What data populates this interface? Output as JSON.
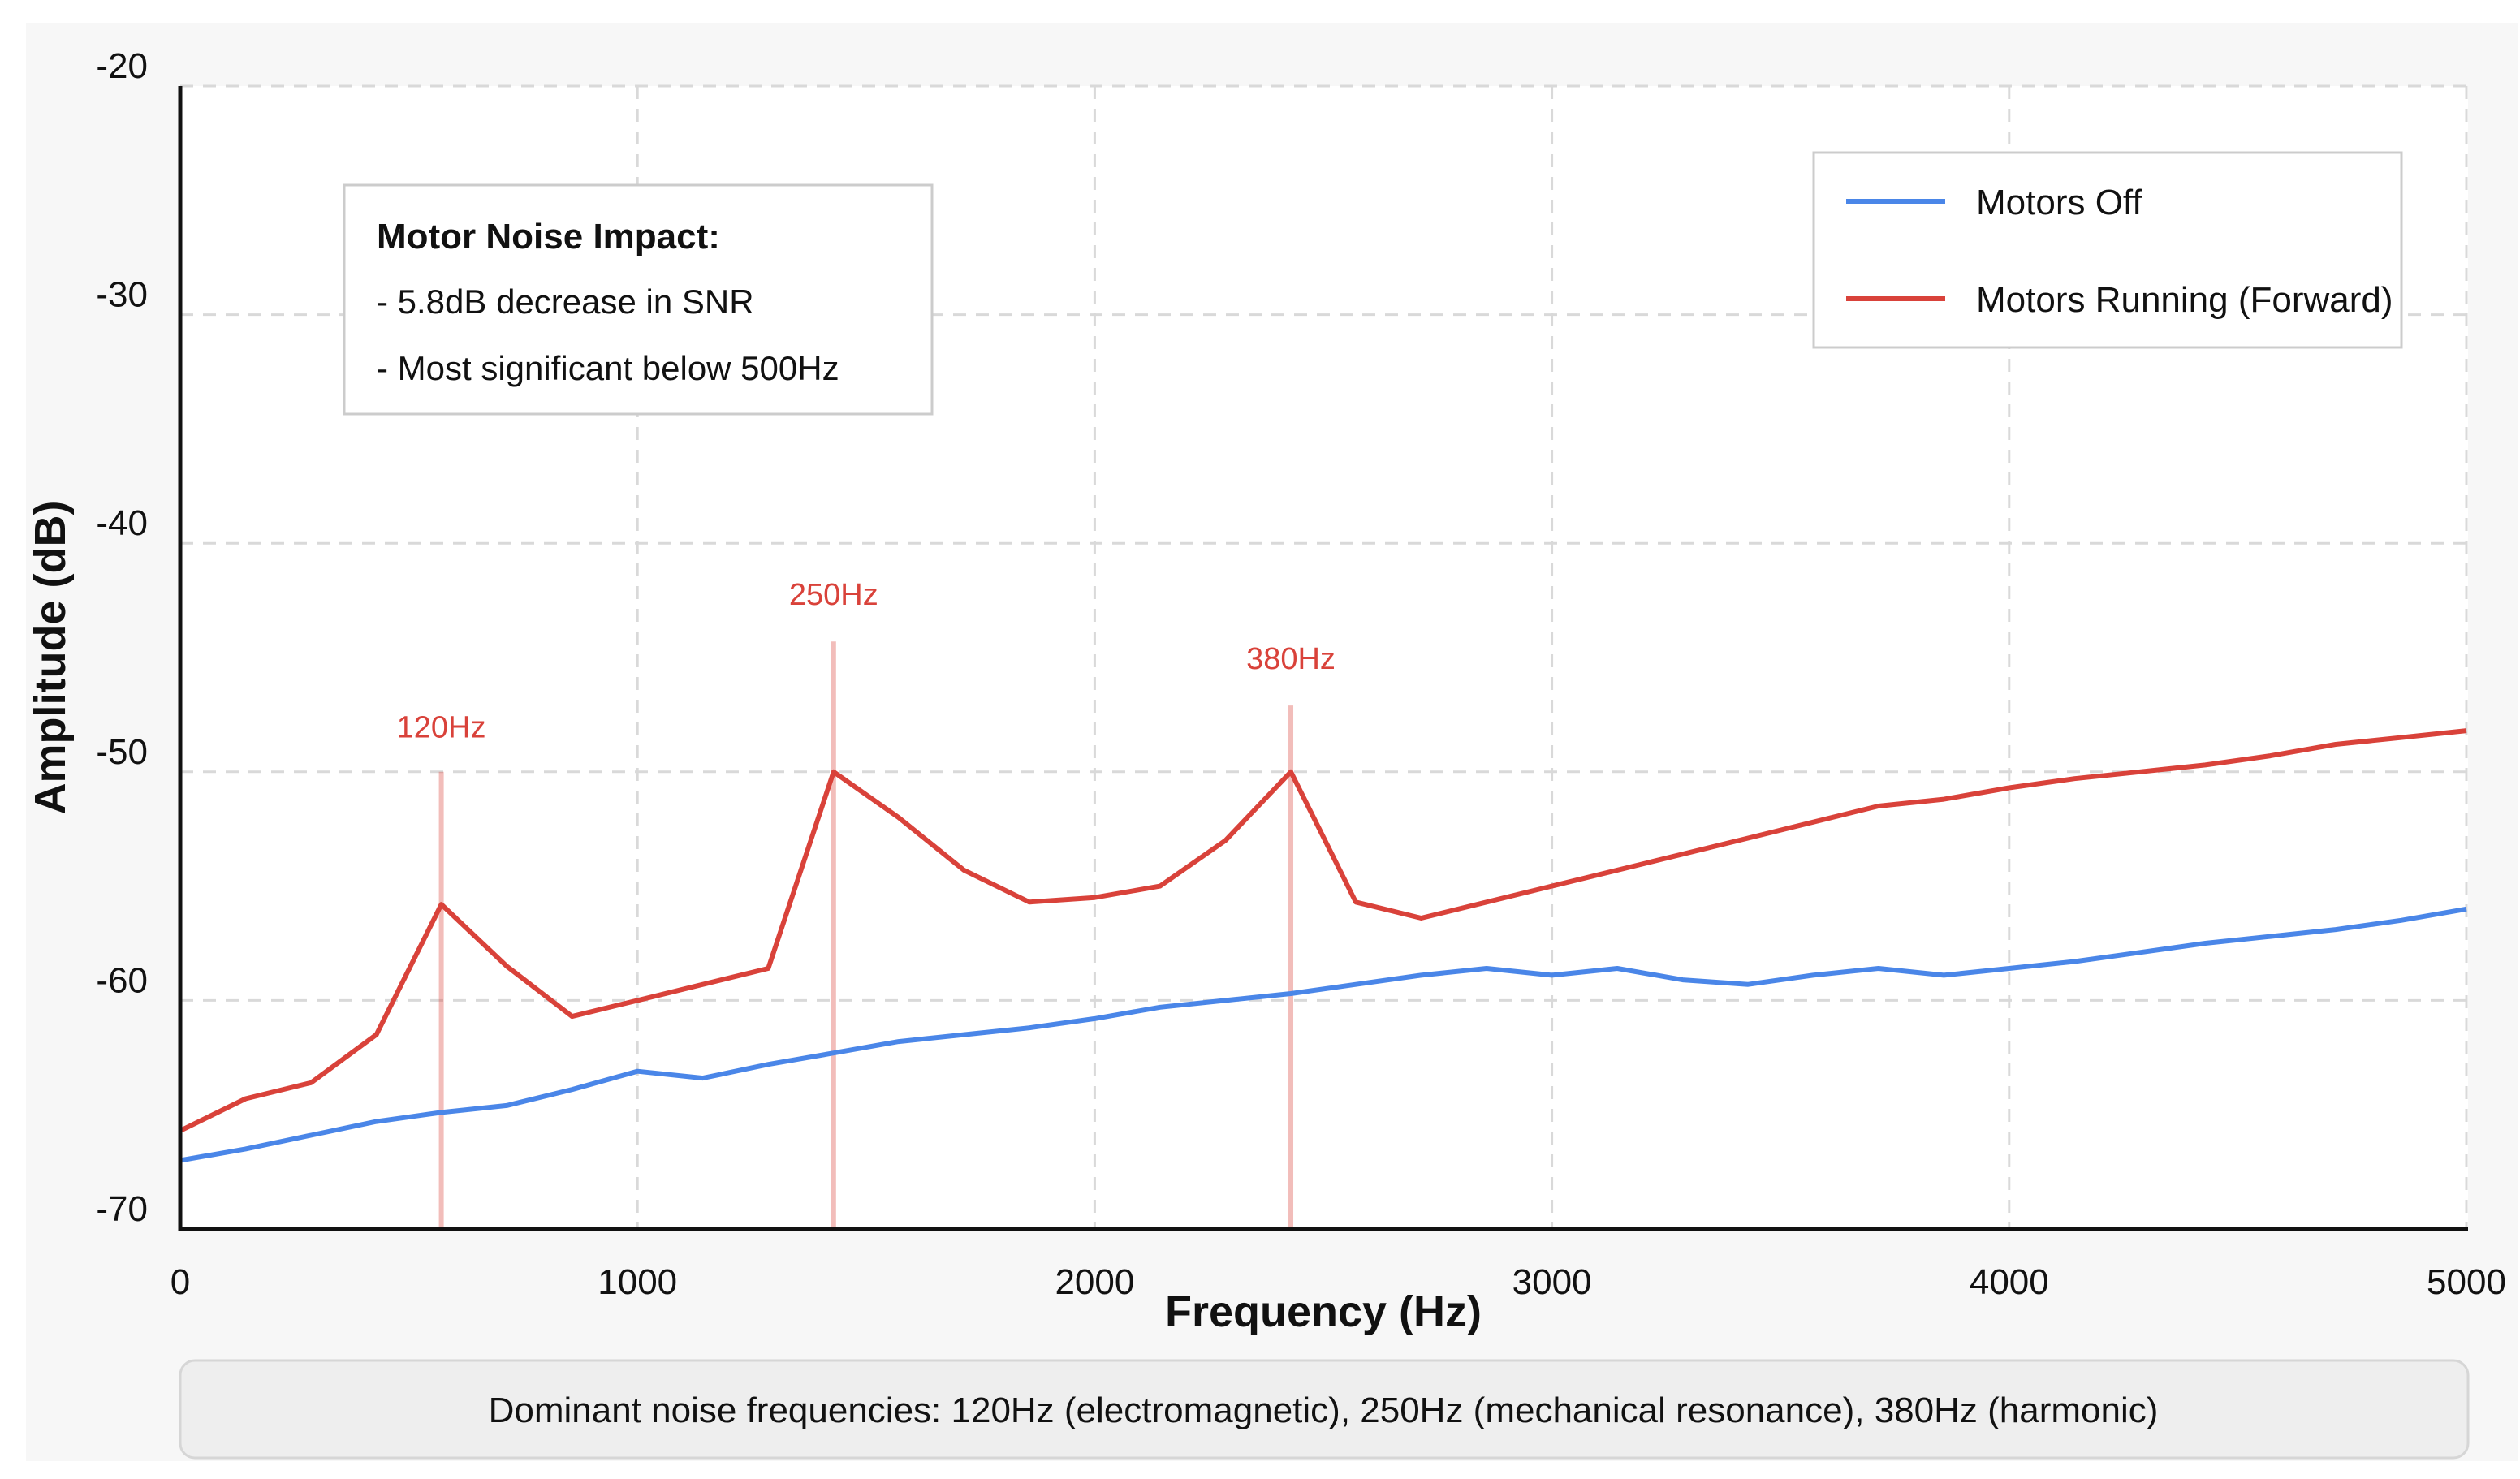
{
  "chart_data": {
    "type": "line",
    "xlabel": "Frequency (Hz)",
    "ylabel": "Amplitude (dB)",
    "xlim": [
      0,
      5000
    ],
    "ylim": [
      -70,
      -20
    ],
    "x_ticks": [
      0,
      1000,
      2000,
      3000,
      4000,
      5000
    ],
    "y_ticks": [
      -20,
      -30,
      -40,
      -50,
      -60,
      -70
    ],
    "grid": true,
    "legend_position": "top-right",
    "x": [
      0,
      143,
      286,
      429,
      571,
      714,
      857,
      1000,
      1143,
      1286,
      1429,
      1571,
      1714,
      1857,
      2000,
      2143,
      2286,
      2429,
      2571,
      2714,
      2857,
      3000,
      3143,
      3286,
      3429,
      3571,
      3714,
      3857,
      4000,
      4143,
      4286,
      4429,
      4571,
      4714,
      4857,
      5000
    ],
    "series": [
      {
        "name": "Motors Off",
        "color": "#4a86e8",
        "values": [
          -67,
          -66.5,
          -65.9,
          -65.3,
          -64.9,
          -64.6,
          -63.9,
          -63.1,
          -63.4,
          -62.8,
          -62.3,
          -61.8,
          -61.5,
          -61.2,
          -60.8,
          -60.3,
          -60.0,
          -59.7,
          -59.3,
          -58.9,
          -58.6,
          -58.9,
          -58.6,
          -59.1,
          -59.3,
          -58.9,
          -58.6,
          -58.9,
          -58.6,
          -58.3,
          -57.9,
          -57.5,
          -57.2,
          -56.9,
          -56.5,
          -56.0
        ]
      },
      {
        "name": "Motors Running (Forward)",
        "color": "#d9423a",
        "values": [
          -65.7,
          -64.3,
          -63.6,
          -61.5,
          -55.8,
          -58.5,
          -60.7,
          -60.0,
          -59.3,
          -58.6,
          -50.0,
          -52.0,
          -54.3,
          -55.7,
          -55.5,
          -55.0,
          -53.0,
          -50.0,
          -55.7,
          -56.4,
          -55.7,
          -55.0,
          -54.3,
          -53.6,
          -52.9,
          -52.2,
          -51.5,
          -51.2,
          -50.7,
          -50.3,
          -50.0,
          -49.7,
          -49.3,
          -48.8,
          -48.5,
          -48.2
        ]
      }
    ],
    "peaks": [
      {
        "label": "120Hz",
        "x": 571,
        "y_top": -50.0,
        "label_y": -48.5
      },
      {
        "label": "250Hz",
        "x": 1429,
        "y_top": -44.3,
        "label_y": -42.7
      },
      {
        "label": "380Hz",
        "x": 2429,
        "y_top": -47.1,
        "label_y": -45.5
      }
    ],
    "peak_color": "#d9423a"
  },
  "annotation": {
    "title": "Motor Noise Impact:",
    "lines": [
      "- 5.8dB decrease in SNR",
      "- Most significant below 500Hz"
    ]
  },
  "footer": {
    "text": "Dominant noise frequencies: 120Hz (electromagnetic), 250Hz (mechanical resonance), 380Hz (harmonic)"
  }
}
